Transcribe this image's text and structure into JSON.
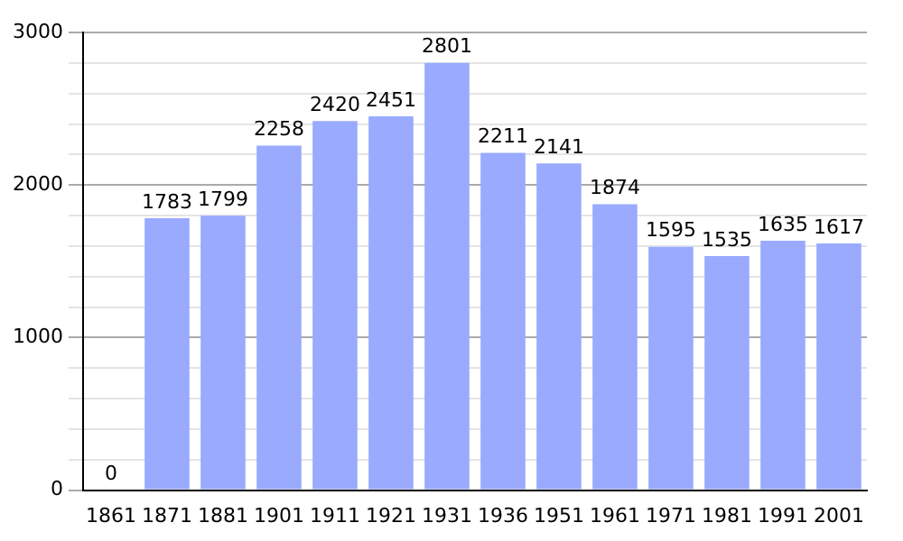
{
  "chart_data": {
    "type": "bar",
    "categories": [
      "1861",
      "1871",
      "1881",
      "1901",
      "1911",
      "1921",
      "1931",
      "1936",
      "1951",
      "1961",
      "1971",
      "1981",
      "1991",
      "2001"
    ],
    "values": [
      0,
      1783,
      1799,
      2258,
      2420,
      2451,
      2801,
      2211,
      2141,
      1874,
      1595,
      1535,
      1635,
      1617
    ],
    "color": "#99aaff",
    "ylim": [
      0,
      3000
    ],
    "yticks": [
      0,
      {
        "value": 200,
        "label": null
      },
      {
        "value": 400,
        "label": null
      },
      {
        "value": 600,
        "label": null
      },
      {
        "value": 800,
        "label": null
      },
      1000,
      {
        "value": 1200,
        "label": null
      },
      {
        "value": 1400,
        "label": null
      },
      {
        "value": 1600,
        "label": null
      },
      {
        "value": 1800,
        "label": null
      },
      2000,
      {
        "value": 2200,
        "label": null
      },
      {
        "value": 2400,
        "label": null
      },
      {
        "value": 2600,
        "label": null
      },
      {
        "value": 2800,
        "label": null
      },
      3000
    ],
    "grid": "y",
    "data_labels": true
  }
}
